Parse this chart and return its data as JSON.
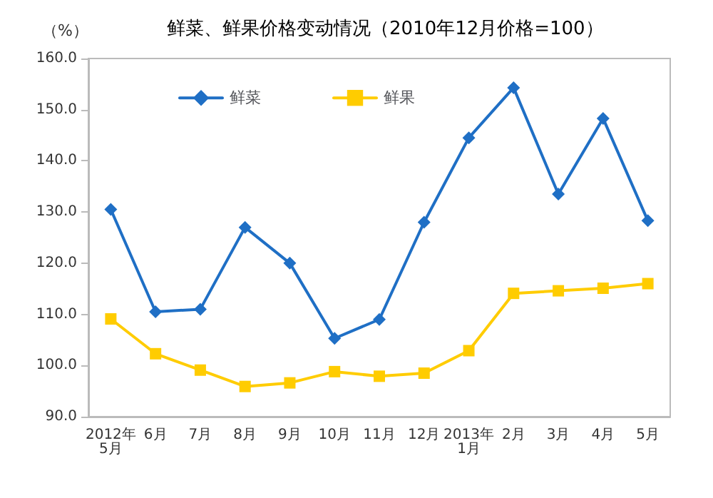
{
  "chart_data": {
    "type": "line",
    "title": "鲜菜、鲜果价格变动情况（2010年12月价格=100）",
    "ylabel": "（%）",
    "categories": [
      "2012年\n5月",
      "6月",
      "7月",
      "8月",
      "9月",
      "10月",
      "11月",
      "12月",
      "2013年\n1月",
      "2月",
      "3月",
      "4月",
      "5月"
    ],
    "series": [
      {
        "name": "鲜菜",
        "color": "#1f6fc5",
        "marker": "diamond",
        "values": [
          130.5,
          110.5,
          111,
          127,
          120,
          105.3,
          109,
          128,
          144.5,
          154.3,
          133.5,
          148.3,
          128.3
        ]
      },
      {
        "name": "鲜果",
        "color": "#ffcc00",
        "marker": "square",
        "values": [
          109.1,
          102.3,
          99.1,
          95.9,
          96.6,
          98.8,
          97.9,
          98.5,
          102.9,
          114.1,
          114.6,
          115.1,
          116
        ]
      }
    ],
    "ylim": [
      90,
      160
    ],
    "yticks": [
      {
        "value": 90,
        "label": "90.0"
      },
      {
        "value": 100,
        "label": "100.0"
      },
      {
        "value": 110,
        "label": "110.0"
      },
      {
        "value": 120,
        "label": "120.0"
      },
      {
        "value": 130,
        "label": "130.0"
      },
      {
        "value": 140,
        "label": "140.0"
      },
      {
        "value": 150,
        "label": "150.0"
      },
      {
        "value": 160,
        "label": "160.0"
      }
    ],
    "grid": false,
    "legend": "top left",
    "line_style": "solid"
  }
}
